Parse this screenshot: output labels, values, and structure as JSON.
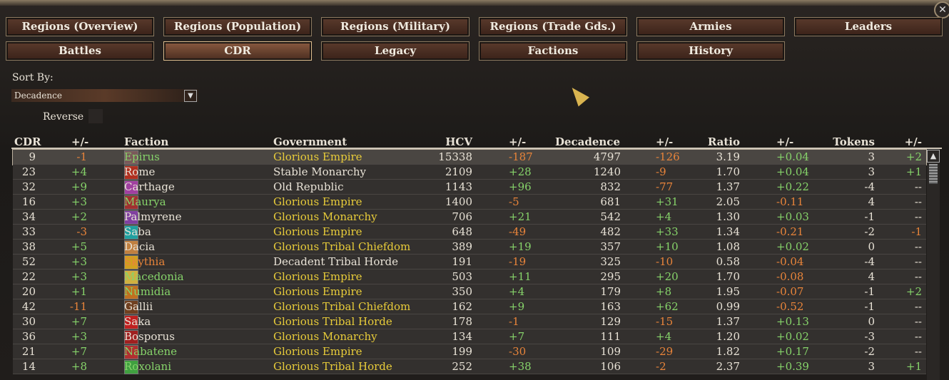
{
  "tabs": {
    "row1": [
      "Regions (Overview)",
      "Regions (Population)",
      "Regions (Military)",
      "Regions (Trade Gds.)",
      "Armies",
      "Leaders"
    ],
    "row2": [
      "Battles",
      "CDR",
      "Legacy",
      "Factions",
      "History"
    ]
  },
  "sort": {
    "label": "Sort By:",
    "value": "Decadence",
    "reverse": "Reverse"
  },
  "table": {
    "headers": [
      "CDR",
      "+/-",
      "Faction",
      "Government",
      "HCV",
      "+/-",
      "Decadence",
      "+/-",
      "Ratio",
      "+/-",
      "Tokens",
      "+/-"
    ],
    "rows": [
      [
        "9",
        "-1",
        "Epirus",
        "Glorious Empire",
        "15338",
        "-187",
        "4797",
        "-126",
        "3.19",
        "+0.04",
        "3",
        "+2"
      ],
      [
        "23",
        "+4",
        "Rome",
        "Stable Monarchy",
        "2109",
        "+28",
        "1240",
        "-9",
        "1.70",
        "+0.04",
        "3",
        "+1"
      ],
      [
        "32",
        "+9",
        "Carthage",
        "Old Republic",
        "1143",
        "+96",
        "832",
        "-77",
        "1.37",
        "+0.22",
        "-4",
        "--"
      ],
      [
        "16",
        "+3",
        "Maurya",
        "Glorious Empire",
        "1400",
        "-5",
        "681",
        "+31",
        "2.05",
        "-0.11",
        "4",
        "--"
      ],
      [
        "34",
        "+2",
        "Palmyrene",
        "Glorious Monarchy",
        "706",
        "+21",
        "542",
        "+4",
        "1.30",
        "+0.03",
        "-1",
        "--"
      ],
      [
        "33",
        "-3",
        "Saba",
        "Glorious Empire",
        "648",
        "-49",
        "482",
        "+33",
        "1.34",
        "-0.21",
        "-2",
        "-1"
      ],
      [
        "38",
        "+5",
        "Dacia",
        "Glorious Tribal Chiefdom",
        "389",
        "+19",
        "357",
        "+10",
        "1.08",
        "+0.02",
        "0",
        "--"
      ],
      [
        "52",
        "+3",
        "Skythia",
        "Decadent Tribal Horde",
        "191",
        "-19",
        "325",
        "-10",
        "0.58",
        "-0.04",
        "-4",
        "--"
      ],
      [
        "22",
        "+3",
        "Macedonia",
        "Glorious Empire",
        "503",
        "+11",
        "295",
        "+20",
        "1.70",
        "-0.08",
        "4",
        "--"
      ],
      [
        "20",
        "+1",
        "Numidia",
        "Glorious Empire",
        "350",
        "+4",
        "179",
        "+8",
        "1.95",
        "-0.07",
        "-1",
        "+2"
      ],
      [
        "42",
        "-11",
        "Gallii",
        "Glorious Tribal Chiefdom",
        "162",
        "+9",
        "163",
        "+62",
        "0.99",
        "-0.52",
        "-1",
        "--"
      ],
      [
        "30",
        "+7",
        "Saka",
        "Glorious Tribal Horde",
        "178",
        "-1",
        "129",
        "-15",
        "1.37",
        "+0.13",
        "0",
        "--"
      ],
      [
        "36",
        "+3",
        "Bosporus",
        "Glorious Monarchy",
        "134",
        "+7",
        "111",
        "+4",
        "1.20",
        "+0.02",
        "-3",
        "--"
      ],
      [
        "21",
        "+7",
        "Nabatene",
        "Glorious Empire",
        "199",
        "-30",
        "109",
        "-29",
        "1.82",
        "+0.17",
        "-2",
        "--"
      ],
      [
        "14",
        "+8",
        "Roxolani",
        "Glorious Tribal Horde",
        "252",
        "+38",
        "106",
        "-2",
        "2.37",
        "+0.39",
        "3",
        "+1"
      ]
    ]
  }
}
